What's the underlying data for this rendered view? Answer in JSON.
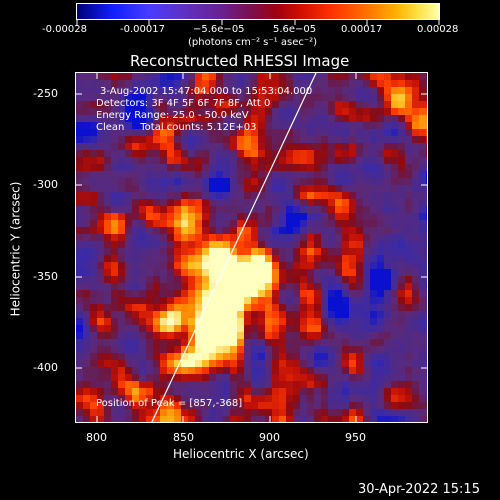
{
  "colorbar": {
    "tick_labels": [
      "-0.00028",
      "-0.00017",
      "−5.6e−05",
      "5.6e−05",
      "0.00017",
      "0.00028"
    ],
    "unit_label": "(photons cm⁻² s⁻¹ asec⁻²)"
  },
  "plot": {
    "title": "Reconstructed RHESSI Image",
    "annotations": {
      "time": "3-Aug-2002 15:47:04.000 to 15:53:04.000",
      "detectors": "Detectors: 3F 4F 5F 6F 7F 8F, Att 0",
      "energy": "Energy Range: 25.0 - 50.0 keV",
      "clean": "Clean     Total counts: 5.12E+03",
      "peak": "Position of Peak = [857,-368]"
    },
    "xlabel": "Heliocentric X (arcsec)",
    "ylabel": "Heliocentric Y (arcsec)",
    "xticks": [
      "800",
      "850",
      "900",
      "950"
    ],
    "yticks": [
      "-250",
      "-300",
      "-350",
      "-400"
    ],
    "xlim": [
      788,
      980
    ],
    "ylim": [
      -430,
      -238
    ]
  },
  "footer": {
    "timestamp": "30-Apr-2022 15:15"
  },
  "colors": {
    "background": "#000000",
    "limb_line": "#ffffff"
  }
}
